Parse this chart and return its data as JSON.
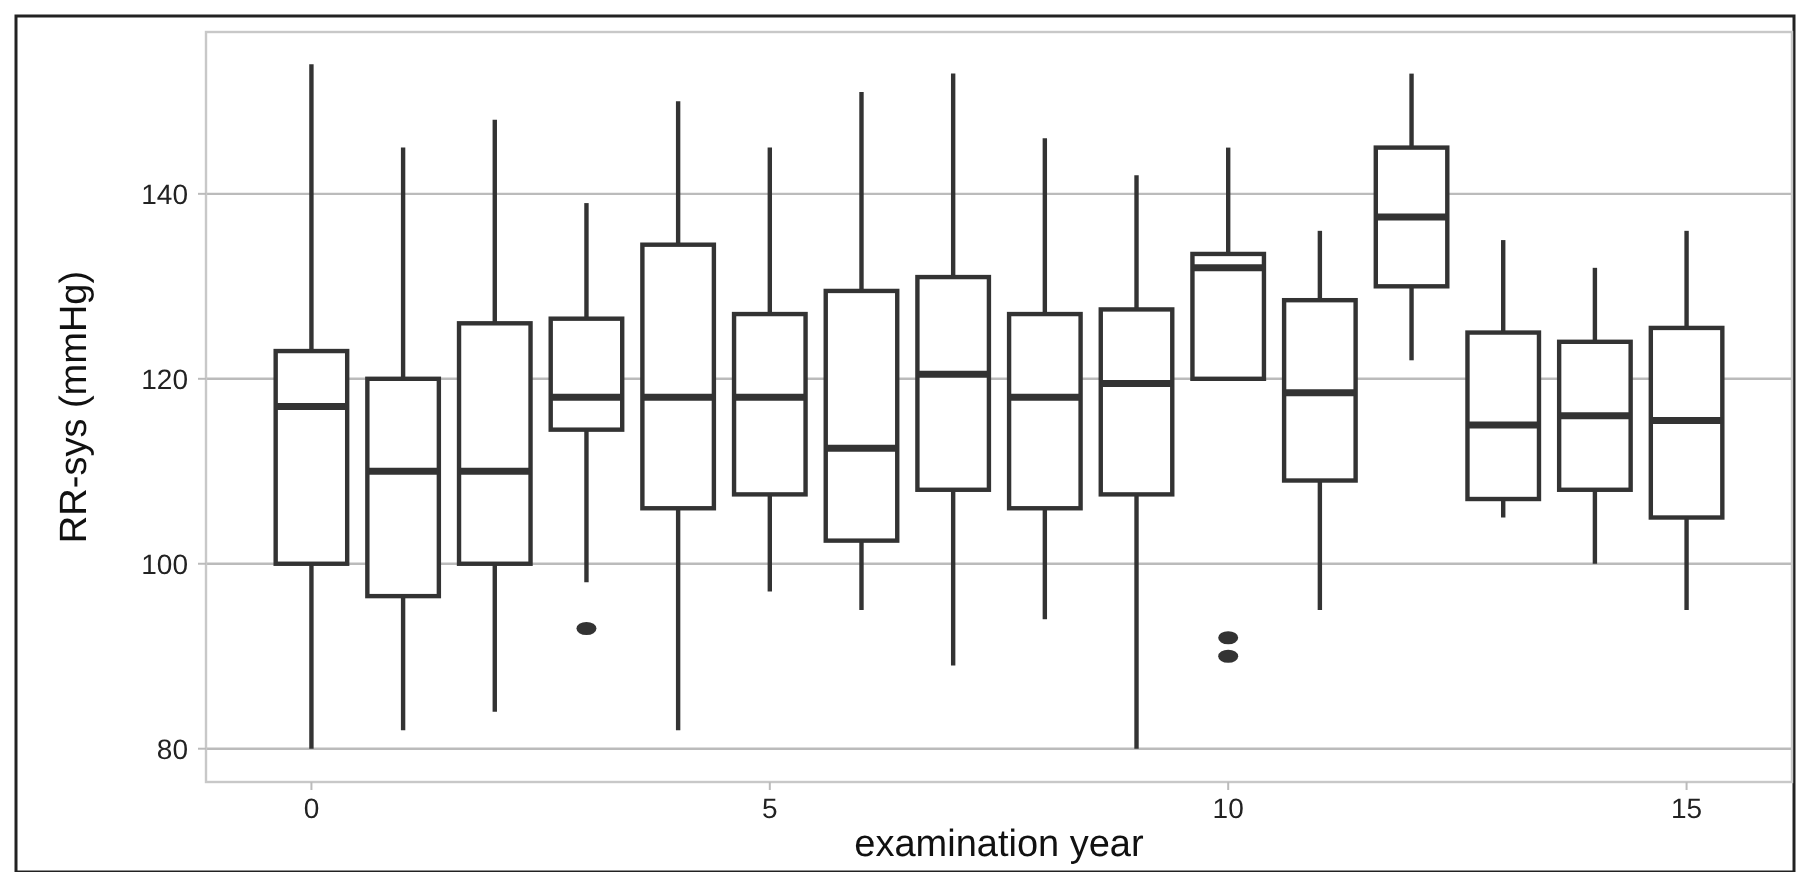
{
  "chart_data": {
    "type": "box",
    "xlabel": "examination year",
    "ylabel": "RR-sys (mmHg)",
    "x": [
      0,
      1,
      2,
      3,
      4,
      5,
      6,
      7,
      8,
      9,
      10,
      11,
      12,
      13,
      14,
      15
    ],
    "xlim": [
      -1.15,
      16.15
    ],
    "xticks": [
      0,
      5,
      10,
      15
    ],
    "ylim": [
      76.4,
      157.5
    ],
    "yticks": [
      80,
      100,
      120,
      140
    ],
    "grid": "y",
    "boxes": [
      {
        "low": 80,
        "q1": 100,
        "median": 117,
        "q3": 123,
        "high": 154
      },
      {
        "low": 82,
        "q1": 96.5,
        "median": 110,
        "q3": 120,
        "high": 145
      },
      {
        "low": 84,
        "q1": 100,
        "median": 110,
        "q3": 126,
        "high": 148
      },
      {
        "low": 98,
        "q1": 114.5,
        "median": 118,
        "q3": 126.5,
        "high": 139,
        "outliers": [
          93
        ]
      },
      {
        "low": 82,
        "q1": 106,
        "median": 118,
        "q3": 134.5,
        "high": 150
      },
      {
        "low": 97,
        "q1": 107.5,
        "median": 118,
        "q3": 127,
        "high": 145
      },
      {
        "low": 95,
        "q1": 102.5,
        "median": 112.5,
        "q3": 129.5,
        "high": 151
      },
      {
        "low": 89,
        "q1": 108,
        "median": 120.5,
        "q3": 131,
        "high": 153
      },
      {
        "low": 94,
        "q1": 106,
        "median": 118,
        "q3": 127,
        "high": 146
      },
      {
        "low": 80,
        "q1": 107.5,
        "median": 119.5,
        "q3": 127.5,
        "high": 142
      },
      {
        "low": 120,
        "q1": 120,
        "median": 132,
        "q3": 133.5,
        "high": 145,
        "outliers": [
          92,
          90
        ]
      },
      {
        "low": 95,
        "q1": 109,
        "median": 118.5,
        "q3": 128.5,
        "high": 136
      },
      {
        "low": 122,
        "q1": 130,
        "median": 137.5,
        "q3": 145,
        "high": 153
      },
      {
        "low": 105,
        "q1": 107,
        "median": 115,
        "q3": 125,
        "high": 135
      },
      {
        "low": 100,
        "q1": 108,
        "median": 116,
        "q3": 124,
        "high": 132
      },
      {
        "low": 95,
        "q1": 105,
        "median": 115.5,
        "q3": 125.5,
        "high": 136
      }
    ]
  }
}
